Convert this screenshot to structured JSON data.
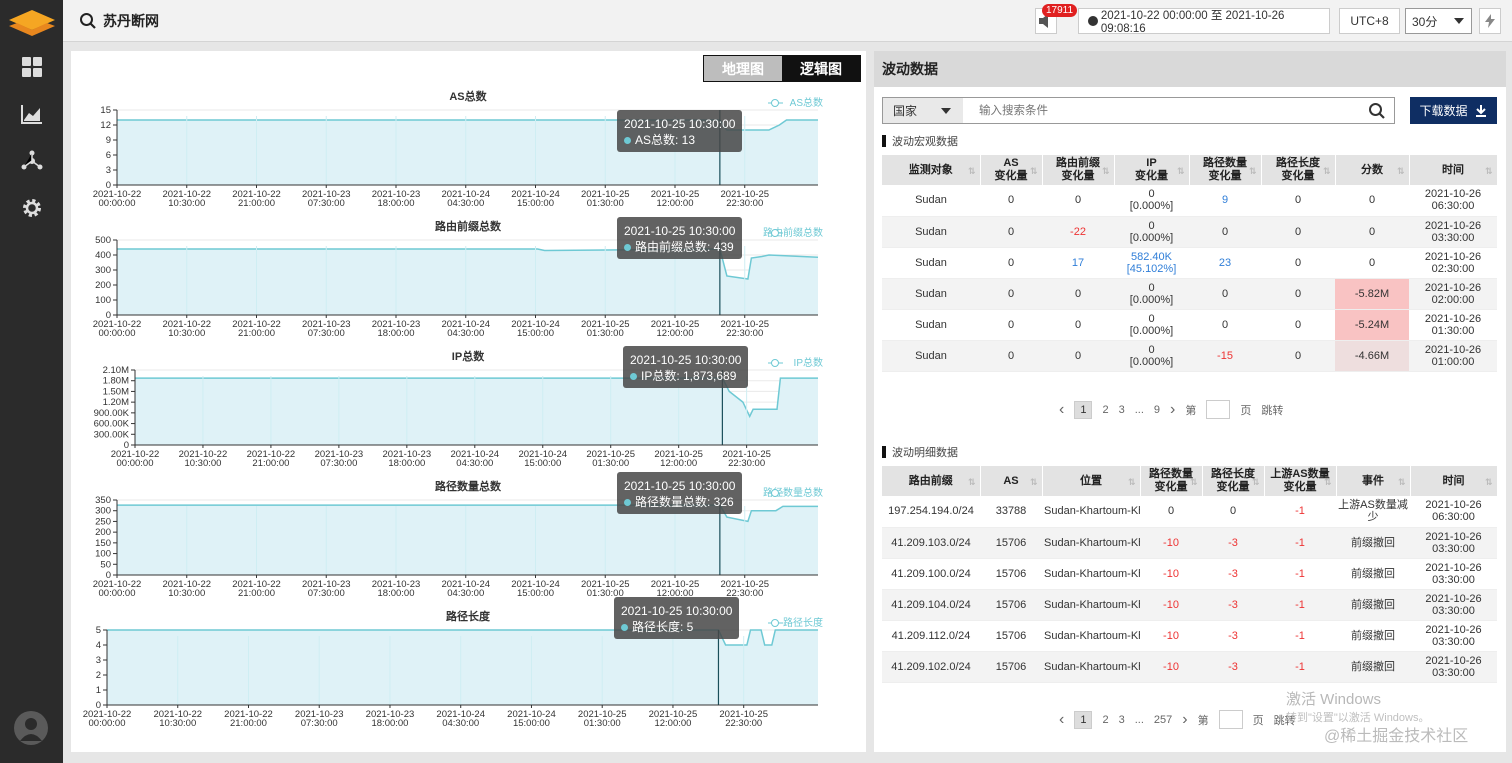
{
  "header": {
    "title": "苏丹断网",
    "notification_count": "17911",
    "date_range": "2021-10-22 00:00:00 至 2021-10-26 09:08:16",
    "timezone": "UTC+8",
    "interval": "30分"
  },
  "map_toggle": {
    "geo": "地理图",
    "logic": "逻辑图"
  },
  "x_ticks": [
    [
      "2021-10-22",
      "00:00:00"
    ],
    [
      "2021-10-22",
      "10:30:00"
    ],
    [
      "2021-10-22",
      "21:00:00"
    ],
    [
      "2021-10-23",
      "07:30:00"
    ],
    [
      "2021-10-23",
      "18:00:00"
    ],
    [
      "2021-10-24",
      "04:30:00"
    ],
    [
      "2021-10-24",
      "15:00:00"
    ],
    [
      "2021-10-25",
      "01:30:00"
    ],
    [
      "2021-10-25",
      "12:00:00"
    ],
    [
      "2021-10-25",
      "22:30:00"
    ]
  ],
  "charts": [
    {
      "title": "AS总数",
      "legend": "AS总数",
      "yticks": [
        "15",
        "12",
        "9",
        "6",
        "3",
        "0"
      ],
      "ymax": 15,
      "tooltip_time": "2021-10-25 10:30:00",
      "tooltip_label": "AS总数: 13"
    },
    {
      "title": "路由前缀总数",
      "legend": "路由前缀总数",
      "yticks": [
        "500",
        "400",
        "300",
        "200",
        "100",
        "0"
      ],
      "ymax": 500,
      "tooltip_time": "2021-10-25 10:30:00",
      "tooltip_label": "路由前缀总数: 439"
    },
    {
      "title": "IP总数",
      "legend": "IP总数",
      "yticks": [
        "2.10M",
        "1.80M",
        "1.50M",
        "1.20M",
        "900.00K",
        "600.00K",
        "300.00K",
        "0"
      ],
      "ymax": 2100000,
      "tooltip_time": "2021-10-25 10:30:00",
      "tooltip_label": "IP总数: 1,873,689"
    },
    {
      "title": "路径数量总数",
      "legend": "路径数量总数",
      "yticks": [
        "350",
        "300",
        "250",
        "200",
        "150",
        "100",
        "50",
        "0"
      ],
      "ymax": 350,
      "tooltip_time": "2021-10-25 10:30:00",
      "tooltip_label": "路径数量总数: 326"
    },
    {
      "title": "路径长度",
      "legend": "路径长度",
      "yticks": [
        "5",
        "4",
        "3",
        "2",
        "1",
        "0"
      ],
      "ymax": 5,
      "tooltip_time": "2021-10-25 10:30:00",
      "tooltip_label": "路径长度: 5"
    }
  ],
  "chart_data": [
    {
      "type": "area",
      "title": "AS总数",
      "series": [
        {
          "name": "AS总数",
          "values": [
            [
              0,
              13
            ],
            [
              0.86,
              13
            ],
            [
              0.87,
              11
            ],
            [
              0.93,
              11
            ],
            [
              0.945,
              12
            ],
            [
              0.955,
              13
            ],
            [
              1,
              13
            ]
          ]
        }
      ],
      "ylim": [
        0,
        15
      ]
    },
    {
      "type": "area",
      "title": "路由前缀总数",
      "series": [
        {
          "name": "路由前缀总数",
          "values": [
            [
              0,
              440
            ],
            [
              0.6,
              440
            ],
            [
              0.61,
              430
            ],
            [
              0.86,
              440
            ],
            [
              0.87,
              260
            ],
            [
              0.9,
              240
            ],
            [
              0.905,
              380
            ],
            [
              0.92,
              390
            ],
            [
              0.93,
              400
            ],
            [
              1,
              385
            ]
          ]
        }
      ],
      "ylim": [
        0,
        500
      ]
    },
    {
      "type": "area",
      "title": "IP总数",
      "series": [
        {
          "name": "IP总数",
          "values": [
            [
              0,
              1873689
            ],
            [
              0.86,
              1873689
            ],
            [
              0.87,
              1500000
            ],
            [
              0.89,
              1200000
            ],
            [
              0.9,
              800000
            ],
            [
              0.905,
              1000000
            ],
            [
              0.94,
              1000000
            ],
            [
              0.945,
              1873689
            ],
            [
              1,
              1873689
            ]
          ]
        }
      ],
      "ylim": [
        0,
        2100000
      ]
    },
    {
      "type": "area",
      "title": "路径数量总数",
      "series": [
        {
          "name": "路径数量总数",
          "values": [
            [
              0,
              326
            ],
            [
              0.86,
              326
            ],
            [
              0.87,
              270
            ],
            [
              0.9,
              250
            ],
            [
              0.905,
              300
            ],
            [
              0.94,
              300
            ],
            [
              0.95,
              320
            ],
            [
              1,
              320
            ]
          ]
        }
      ],
      "ylim": [
        0,
        350
      ]
    },
    {
      "type": "area",
      "title": "路径长度",
      "series": [
        {
          "name": "路径长度",
          "values": [
            [
              0,
              5
            ],
            [
              0.86,
              5
            ],
            [
              0.87,
              4
            ],
            [
              0.9,
              4
            ],
            [
              0.905,
              5
            ],
            [
              0.92,
              5
            ],
            [
              0.925,
              4
            ],
            [
              0.935,
              4
            ],
            [
              0.94,
              5
            ],
            [
              1,
              5
            ]
          ]
        }
      ],
      "ylim": [
        0,
        5
      ]
    }
  ],
  "right": {
    "title": "波动数据",
    "search_select": "国家",
    "search_placeholder": "输入搜索条件",
    "download": "下载数据",
    "macro_title": "波动宏观数据",
    "detail_title": "波动明细数据"
  },
  "macro_headers": [
    [
      "监测对象",
      ""
    ],
    [
      "AS",
      "变化量"
    ],
    [
      "路由前缀",
      "变化量"
    ],
    [
      "IP",
      "变化量"
    ],
    [
      "路径数量",
      "变化量"
    ],
    [
      "路径长度",
      "变化量"
    ],
    [
      "分数",
      ""
    ],
    [
      "时间",
      ""
    ]
  ],
  "macro_rows": [
    [
      "Sudan",
      "0",
      "0",
      [
        "0",
        "[0.000%]"
      ],
      "9",
      "0",
      "0",
      [
        "2021-10-26",
        "06:30:00"
      ]
    ],
    [
      "Sudan",
      "0",
      "-22",
      [
        "0",
        "[0.000%]"
      ],
      "0",
      "0",
      "0",
      [
        "2021-10-26",
        "03:30:00"
      ]
    ],
    [
      "Sudan",
      "0",
      "17",
      [
        "582.40K",
        "[45.102%]"
      ],
      "23",
      "0",
      "0",
      [
        "2021-10-26",
        "02:30:00"
      ]
    ],
    [
      "Sudan",
      "0",
      "0",
      [
        "0",
        "[0.000%]"
      ],
      "0",
      "0",
      "-5.82M",
      [
        "2021-10-26",
        "02:00:00"
      ]
    ],
    [
      "Sudan",
      "0",
      "0",
      [
        "0",
        "[0.000%]"
      ],
      "0",
      "0",
      "-5.24M",
      [
        "2021-10-26",
        "01:30:00"
      ]
    ],
    [
      "Sudan",
      "0",
      "0",
      [
        "0",
        "[0.000%]"
      ],
      "-15",
      "0",
      "-4.66M",
      [
        "2021-10-26",
        "01:00:00"
      ]
    ]
  ],
  "macro_pager": [
    "1",
    "2",
    "3",
    "...",
    "9"
  ],
  "detail_headers": [
    [
      "路由前缀",
      ""
    ],
    [
      "AS",
      ""
    ],
    [
      "位置",
      ""
    ],
    [
      "路径数量",
      "变化量"
    ],
    [
      "路径长度",
      "变化量"
    ],
    [
      "上游AS数量",
      "变化量"
    ],
    [
      "事件",
      ""
    ],
    [
      "时间",
      ""
    ]
  ],
  "detail_rows": [
    [
      "197.254.194.0/24",
      "33788",
      "Sudan-Khartoum-Khartoum",
      "0",
      "0",
      "-1",
      [
        "上游AS数量减",
        "少"
      ],
      [
        "2021-10-26",
        "06:30:00"
      ]
    ],
    [
      "41.209.103.0/24",
      "15706",
      "Sudan-Khartoum-Khartoum",
      "-10",
      "-3",
      "-1",
      [
        "前缀撤回",
        ""
      ],
      [
        "2021-10-26",
        "03:30:00"
      ]
    ],
    [
      "41.209.100.0/24",
      "15706",
      "Sudan-Khartoum-Khartoum",
      "-10",
      "-3",
      "-1",
      [
        "前缀撤回",
        ""
      ],
      [
        "2021-10-26",
        "03:30:00"
      ]
    ],
    [
      "41.209.104.0/24",
      "15706",
      "Sudan-Khartoum-Khartoum",
      "-10",
      "-3",
      "-1",
      [
        "前缀撤回",
        ""
      ],
      [
        "2021-10-26",
        "03:30:00"
      ]
    ],
    [
      "41.209.112.0/24",
      "15706",
      "Sudan-Khartoum-Khartoum",
      "-10",
      "-3",
      "-1",
      [
        "前缀撤回",
        ""
      ],
      [
        "2021-10-26",
        "03:30:00"
      ]
    ],
    [
      "41.209.102.0/24",
      "15706",
      "Sudan-Khartoum-Khartoum",
      "-10",
      "-3",
      "-1",
      [
        "前缀撤回",
        ""
      ],
      [
        "2021-10-26",
        "03:30:00"
      ]
    ]
  ],
  "detail_pager": [
    "1",
    "2",
    "3",
    "...",
    "257"
  ],
  "pager_labels": {
    "page": "第",
    "page_unit": "页",
    "jump": "跳转"
  },
  "watermark": {
    "line1": "激活 Windows",
    "line2": "转到\"设置\"以激活 Windows。",
    "line3": "@稀土掘金技术社区"
  },
  "colors": {
    "line": "#6ec9d4",
    "fill": "#dff2f7",
    "accent": "#0f2e63",
    "negative": "#e33333",
    "positive": "#2f7ed8"
  }
}
